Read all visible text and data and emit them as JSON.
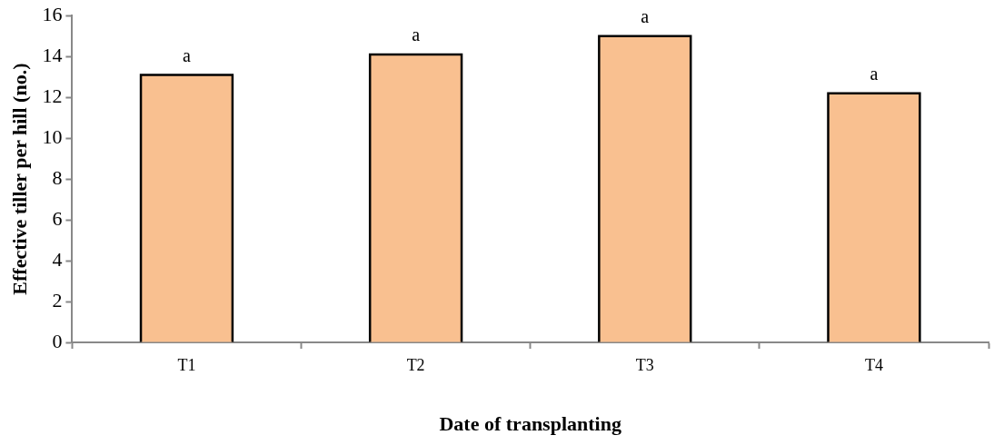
{
  "chart_data": {
    "type": "bar",
    "xlabel": "Date of transplanting",
    "ylabel": "Effective tiller per hill (no.)",
    "categories": [
      "T1",
      "T2",
      "T3",
      "T4"
    ],
    "values": [
      13.1,
      14.1,
      15.0,
      12.2
    ],
    "color": "#f9c090",
    "ylim": [
      0,
      16
    ],
    "yticks": [
      0,
      2,
      4,
      6,
      8,
      10,
      12,
      14,
      16
    ],
    "grid": false,
    "legend": false,
    "annotations": [
      {
        "text": "a",
        "x": "T1",
        "y": 13.1
      },
      {
        "text": "a",
        "x": "T2",
        "y": 14.1
      },
      {
        "text": "a",
        "x": "T3",
        "y": 15.0
      },
      {
        "text": "a",
        "x": "T4",
        "y": 12.2
      }
    ]
  }
}
